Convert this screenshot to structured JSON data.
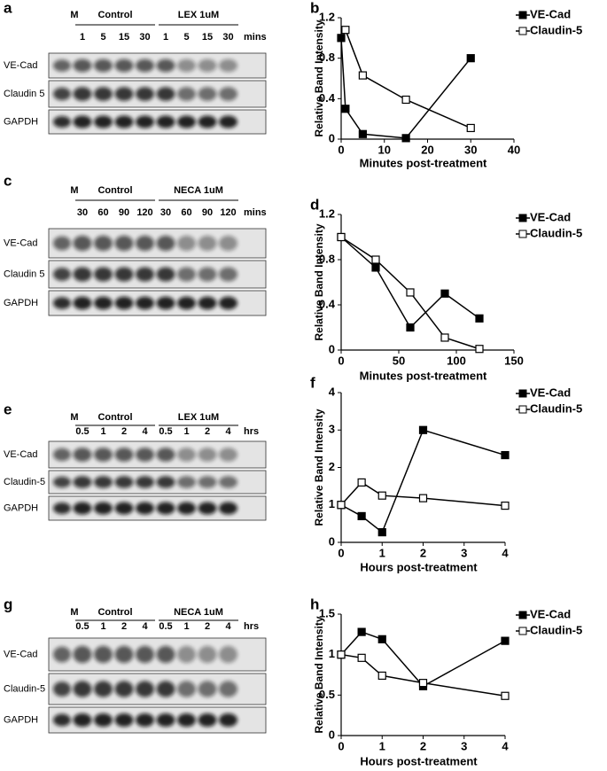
{
  "blots": [
    {
      "panel_label": "a",
      "marker_lane": "M",
      "groups": [
        "Control",
        "LEX 1uM"
      ],
      "times": [
        "1",
        "5",
        "15",
        "30",
        "1",
        "5",
        "15",
        "30"
      ],
      "unit": "mins",
      "rows": [
        "VE-Cad",
        "Claudin 5",
        "GAPDH"
      ]
    },
    {
      "panel_label": "c",
      "marker_lane": "M",
      "groups": [
        "Control",
        "NECA 1uM"
      ],
      "times": [
        "30",
        "60",
        "90",
        "120",
        "30",
        "60",
        "90",
        "120"
      ],
      "unit": "mins",
      "rows": [
        "VE-Cad",
        "Claudin 5",
        "GAPDH"
      ]
    },
    {
      "panel_label": "e",
      "marker_lane": "M",
      "groups": [
        "Control",
        "LEX 1uM"
      ],
      "times": [
        "0.5",
        "1",
        "2",
        "4",
        "0.5",
        "1",
        "2",
        "4"
      ],
      "unit": "hrs",
      "rows": [
        "VE-Cad",
        "Claudin-5",
        "GAPDH"
      ]
    },
    {
      "panel_label": "g",
      "marker_lane": "M",
      "groups": [
        "Control",
        "NECA 1uM"
      ],
      "times": [
        "0.5",
        "1",
        "2",
        "4",
        "0.5",
        "1",
        "2",
        "4"
      ],
      "unit": "hrs",
      "rows": [
        "VE-Cad",
        "Claudin-5",
        "GAPDH"
      ]
    }
  ],
  "chart_data": [
    {
      "type": "line",
      "panel_label": "b",
      "x_label": "Minutes post-treatment",
      "y_label": "Relative Band Intensity",
      "x": [
        0,
        1,
        5,
        15,
        30
      ],
      "xlim": [
        0,
        40
      ],
      "xticks": [
        0,
        10,
        20,
        30,
        40
      ],
      "ylim": [
        0,
        1.2
      ],
      "yticks": [
        0,
        0.4,
        0.8,
        1.2
      ],
      "series": [
        {
          "name": "VE-Cad",
          "color": "#000000",
          "marker": "filled",
          "values": [
            1,
            0.3,
            0.05,
            0.01,
            0.8
          ]
        },
        {
          "name": "Claudin-5",
          "color": "#000000",
          "marker": "open",
          "values": [
            null,
            1.08,
            0.63,
            0.39,
            0.11
          ]
        }
      ]
    },
    {
      "type": "line",
      "panel_label": "d",
      "x_label": "Minutes post-treatment",
      "y_label": "Relative Band Intensity",
      "x": [
        0,
        30,
        60,
        90,
        120
      ],
      "xlim": [
        0,
        150
      ],
      "xticks": [
        0,
        50,
        100,
        150
      ],
      "ylim": [
        0,
        1.2
      ],
      "yticks": [
        0,
        0.4,
        0.8,
        1.2
      ],
      "series": [
        {
          "name": "VE-Cad",
          "color": "#000000",
          "marker": "filled",
          "values": [
            1,
            0.73,
            0.2,
            0.5,
            0.28
          ]
        },
        {
          "name": "Claudin-5",
          "color": "#000000",
          "marker": "open",
          "values": [
            1,
            0.8,
            0.51,
            0.11,
            0.01
          ]
        }
      ]
    },
    {
      "type": "line",
      "panel_label": "f",
      "x_label": "Hours post-treatment",
      "y_label": "Relative Band Intensity",
      "x": [
        0,
        0.5,
        1,
        2,
        4
      ],
      "xlim": [
        0,
        4
      ],
      "xticks": [
        0,
        1,
        2,
        3,
        4
      ],
      "ylim": [
        0,
        4
      ],
      "yticks": [
        0,
        1,
        2,
        3,
        4
      ],
      "series": [
        {
          "name": "VE-Cad",
          "color": "#000000",
          "marker": "filled",
          "values": [
            1,
            0.7,
            0.27,
            3,
            2.33
          ]
        },
        {
          "name": "Claudin-5",
          "color": "#000000",
          "marker": "open",
          "values": [
            1,
            1.6,
            1.25,
            1.18,
            0.98
          ]
        }
      ]
    },
    {
      "type": "line",
      "panel_label": "h",
      "x_label": "Hours post-treatment",
      "y_label": "Relative Band Intensity",
      "x": [
        0,
        0.5,
        1,
        2,
        4
      ],
      "xlim": [
        0,
        4
      ],
      "xticks": [
        0,
        1,
        2,
        3,
        4
      ],
      "ylim": [
        0,
        1.5
      ],
      "yticks": [
        0,
        0.5,
        1,
        1.5
      ],
      "series": [
        {
          "name": "VE-Cad",
          "color": "#000000",
          "marker": "filled",
          "values": [
            1,
            1.28,
            1.19,
            0.61,
            1.17
          ]
        },
        {
          "name": "Claudin-5",
          "color": "#000000",
          "marker": "open",
          "values": [
            1,
            0.96,
            0.74,
            0.65,
            0.49
          ]
        }
      ]
    }
  ]
}
